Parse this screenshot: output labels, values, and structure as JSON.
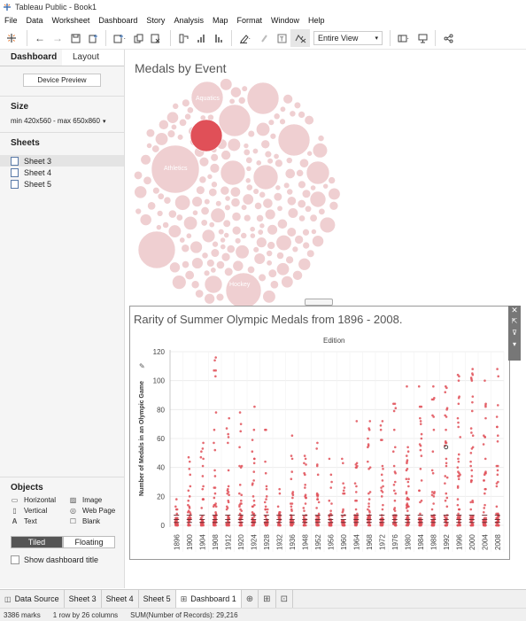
{
  "window": {
    "title": "Tableau Public - Book1"
  },
  "menu": [
    "File",
    "Data",
    "Worksheet",
    "Dashboard",
    "Story",
    "Analysis",
    "Map",
    "Format",
    "Window",
    "Help"
  ],
  "toolbar": {
    "view_select": "Entire View"
  },
  "left_panel": {
    "tabs": [
      "Dashboard",
      "Layout"
    ],
    "device_preview": "Device Preview",
    "size_header": "Size",
    "size_value": "min 420x560 - max 650x860",
    "sheets_header": "Sheets",
    "sheets": [
      "Sheet 3",
      "Sheet 4",
      "Sheet 5"
    ],
    "objects_header": "Objects",
    "objects": [
      "Horizontal",
      "Image",
      "Vertical",
      "Web Page",
      "Text",
      "Blank"
    ],
    "tiled": "Tiled",
    "floating": "Floating",
    "show_title": "Show dashboard title"
  },
  "bubble_chart": {
    "title": "Medals by Event",
    "labels": [
      "Aquatics",
      "Athletics",
      "Hockey"
    ],
    "colors": {
      "bubble": "#efcfd1",
      "highlight": "#e05058"
    }
  },
  "chart_data": {
    "type": "scatter",
    "title": "Rarity of Summer Olympic Medals from 1896 - 2008.",
    "header": "Edition",
    "ylabel": "Number of Medals in an Olympic Game",
    "ylim": [
      0,
      120
    ],
    "yticks": [
      0,
      20,
      40,
      60,
      80,
      100,
      120
    ],
    "categories": [
      "1896",
      "1900",
      "1904",
      "1908",
      "1912",
      "1920",
      "1924",
      "1928",
      "1932",
      "1936",
      "1948",
      "1952",
      "1956",
      "1960",
      "1964",
      "1968",
      "1972",
      "1976",
      "1980",
      "1984",
      "1988",
      "1992",
      "1996",
      "2000",
      "2004",
      "2008"
    ],
    "max_values": [
      18,
      47,
      57,
      116,
      74,
      78,
      82,
      66,
      25,
      62,
      48,
      57,
      46,
      46,
      72,
      72,
      72,
      84,
      96,
      96,
      96,
      96,
      104,
      108,
      100,
      108
    ],
    "color": "#e05058"
  },
  "bottom_tabs": [
    "Data Source",
    "Sheet 3",
    "Sheet 4",
    "Sheet 5",
    "Dashboard 1"
  ],
  "status": {
    "marks": "3386 marks",
    "rows": "1 row by 26 columns",
    "sum": "SUM(Number of Records): 29,216"
  }
}
